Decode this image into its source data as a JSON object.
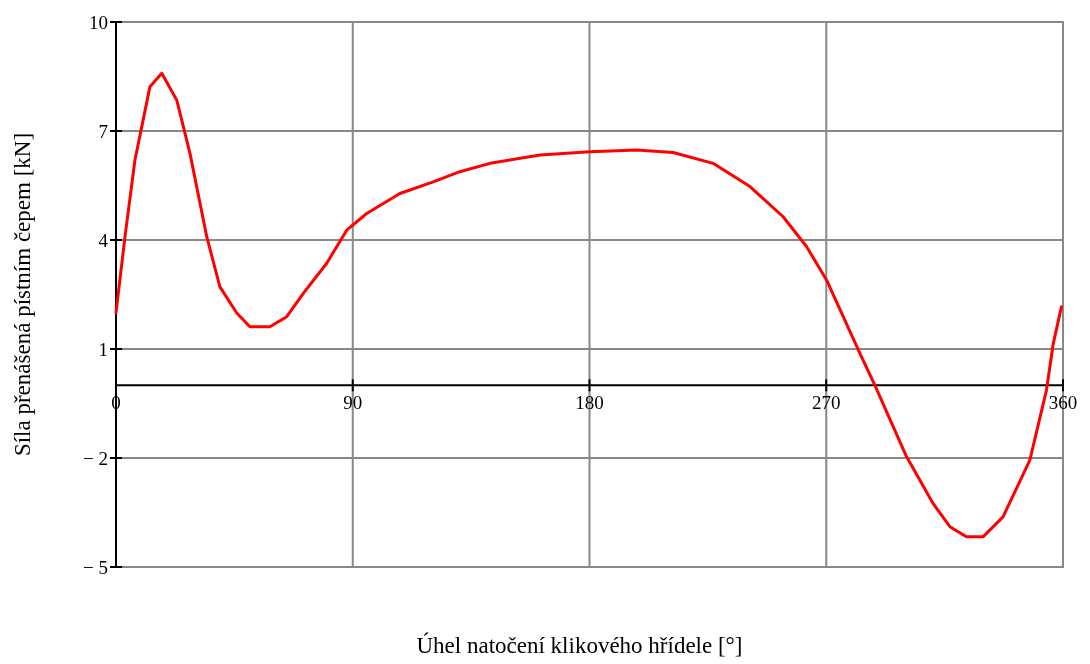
{
  "chart_data": {
    "type": "line",
    "xlabel": "Úhel natočení klikového hřídele [°]",
    "ylabel": "Síla přenášená pístním čepem [kN]",
    "xlim": [
      0,
      360
    ],
    "xticks": [
      0,
      90,
      180,
      270,
      360
    ],
    "ylim": [
      -5,
      10
    ],
    "yticks": [
      10,
      7,
      4,
      1,
      {
        "value": -2,
        "label": "− 2"
      },
      {
        "value": -5,
        "label": "− 5"
      }
    ],
    "grid": true,
    "marker": "none",
    "line_style": "solid",
    "series": [
      {
        "color": "#ff0000",
        "x": [
          0,
          3.4,
          7.2,
          9.8,
          12.9,
          17.4,
          23.1,
          28.1,
          34.5,
          39.5,
          45.9,
          50.9,
          58.5,
          64.9,
          71.2,
          80.1,
          87.7,
          95.3,
          107.9,
          120.6,
          130.7,
          142.2,
          161.2,
          180.2,
          197.9,
          211.8,
          227,
          241,
          253.6,
          262.5,
          270.1,
          282.8,
          288.5,
          300.5,
          310.6,
          317,
          323.3,
          329.6,
          337.2,
          347.4,
          353.7,
          356.3,
          359.4
        ],
        "values": [
          2.0,
          4.08,
          6.2,
          7.12,
          8.22,
          8.59,
          7.85,
          6.39,
          4.09,
          2.71,
          1.99,
          1.61,
          1.61,
          1.89,
          2.53,
          3.36,
          4.27,
          4.73,
          5.28,
          5.6,
          5.88,
          6.11,
          6.34,
          6.43,
          6.48,
          6.41,
          6.11,
          5.47,
          4.64,
          3.82,
          2.9,
          0.88,
          0,
          -1.96,
          -3.25,
          -3.89,
          -4.17,
          -4.17,
          -3.62,
          -2.06,
          -0.14,
          1.15,
          2.16
        ]
      }
    ]
  }
}
